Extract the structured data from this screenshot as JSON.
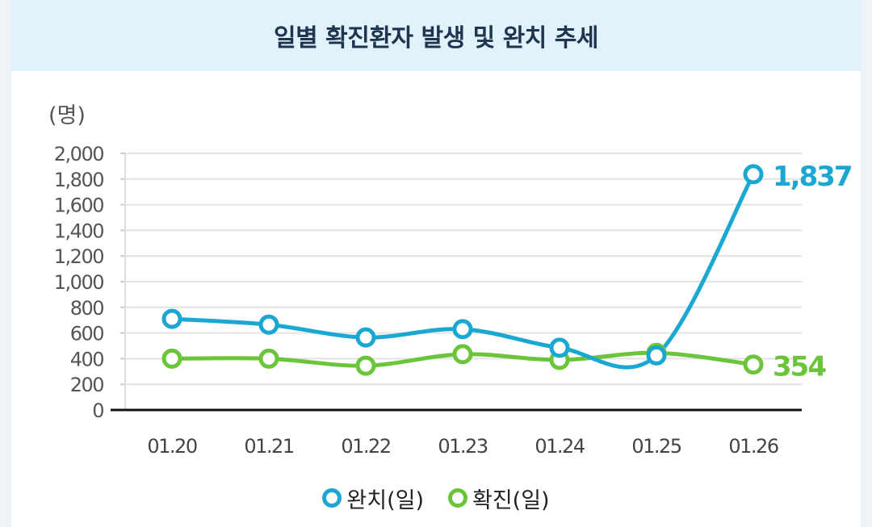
{
  "header": {
    "title": "일별 확진환자 발생 및 완치 추세"
  },
  "colors": {
    "recovered": "#1aa7d2",
    "confirmed": "#6bc53a",
    "header_bg": "#e2f2fb",
    "title": "#1e3550"
  },
  "chart_data": {
    "type": "line",
    "title": "일별 확진환자 발생 및 완치 추세",
    "unit_label": "(명)",
    "categories": [
      "01.20",
      "01.21",
      "01.22",
      "01.23",
      "01.24",
      "01.25",
      "01.26"
    ],
    "y_ticks": [
      "0",
      "200",
      "400",
      "600",
      "800",
      "1,000",
      "1,200",
      "1,400",
      "1,600",
      "1,800",
      "2,000"
    ],
    "ylim": [
      0,
      2000
    ],
    "grid": true,
    "legend_position": "bottom",
    "series": [
      {
        "name": "완치(일)",
        "values": [
          710,
          665,
          565,
          630,
          485,
          425,
          1837
        ],
        "end_label": "1,837"
      },
      {
        "name": "확진(일)",
        "values": [
          400,
          400,
          345,
          435,
          390,
          445,
          354
        ],
        "end_label": "354"
      }
    ]
  }
}
